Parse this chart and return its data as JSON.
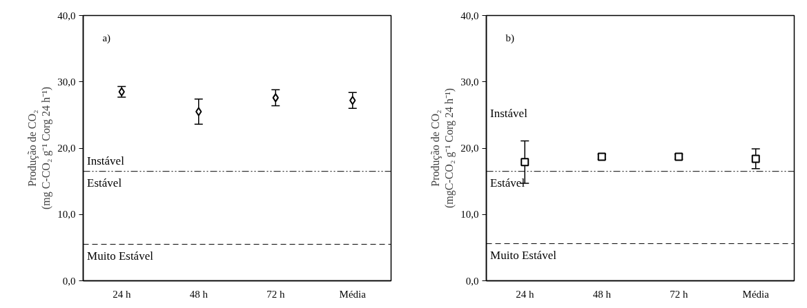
{
  "chart_data": [
    {
      "type": "scatter",
      "title": "a)",
      "categories": [
        "24 h",
        "48 h",
        "72 h",
        "Média"
      ],
      "ylabel": "Produção de CO₂\n(mg C-CO₂ g⁻¹ Corg 24 h⁻¹)",
      "series": [
        {
          "color": "#000000",
          "values": [
            28.5,
            25.5,
            27.6,
            27.2
          ],
          "errors": [
            0.8,
            1.9,
            1.2,
            1.2
          ]
        }
      ],
      "marker": "diamond",
      "ylim": [
        0,
        40
      ],
      "yticks": [
        {
          "value": 0,
          "label": "0,0"
        },
        {
          "value": 10,
          "label": "10,0"
        },
        {
          "value": 20,
          "label": "20,0"
        },
        {
          "value": 30,
          "label": "30,0"
        },
        {
          "value": 40,
          "label": "40,0"
        }
      ],
      "grid": false,
      "ref_lines": [
        {
          "axis": "y",
          "value": 16.5,
          "line_style": "dashdotdot",
          "color": "#000000"
        },
        {
          "axis": "y",
          "value": 5.5,
          "line_style": "dashed",
          "color": "#000000"
        }
      ],
      "annotations": [
        "Instável",
        "Estável",
        "Muito Estável"
      ]
    },
    {
      "type": "scatter",
      "title": "b)",
      "categories": [
        "24 h",
        "48 h",
        "72 h",
        "Média"
      ],
      "ylabel": "Produção de CO₂\n(mgC-CO₂ g⁻¹ Corg 24 h⁻¹)",
      "series": [
        {
          "color": "#000000",
          "values": [
            17.9,
            18.7,
            18.7,
            18.4
          ],
          "errors": [
            3.2,
            0.4,
            0.4,
            1.5
          ]
        }
      ],
      "marker": "square",
      "ylim": [
        0,
        40
      ],
      "yticks": [
        {
          "value": 0,
          "label": "0,0"
        },
        {
          "value": 10,
          "label": "10,0"
        },
        {
          "value": 20,
          "label": "20,0"
        },
        {
          "value": 30,
          "label": "30,0"
        },
        {
          "value": 40,
          "label": "40,0"
        }
      ],
      "grid": false,
      "ref_lines": [
        {
          "axis": "y",
          "value": 16.5,
          "line_style": "dashdotdot",
          "color": "#000000"
        },
        {
          "axis": "y",
          "value": 5.6,
          "line_style": "dashed",
          "color": "#000000"
        }
      ],
      "annotations": [
        "Instável",
        "Estável",
        "Muito Estável"
      ]
    }
  ]
}
